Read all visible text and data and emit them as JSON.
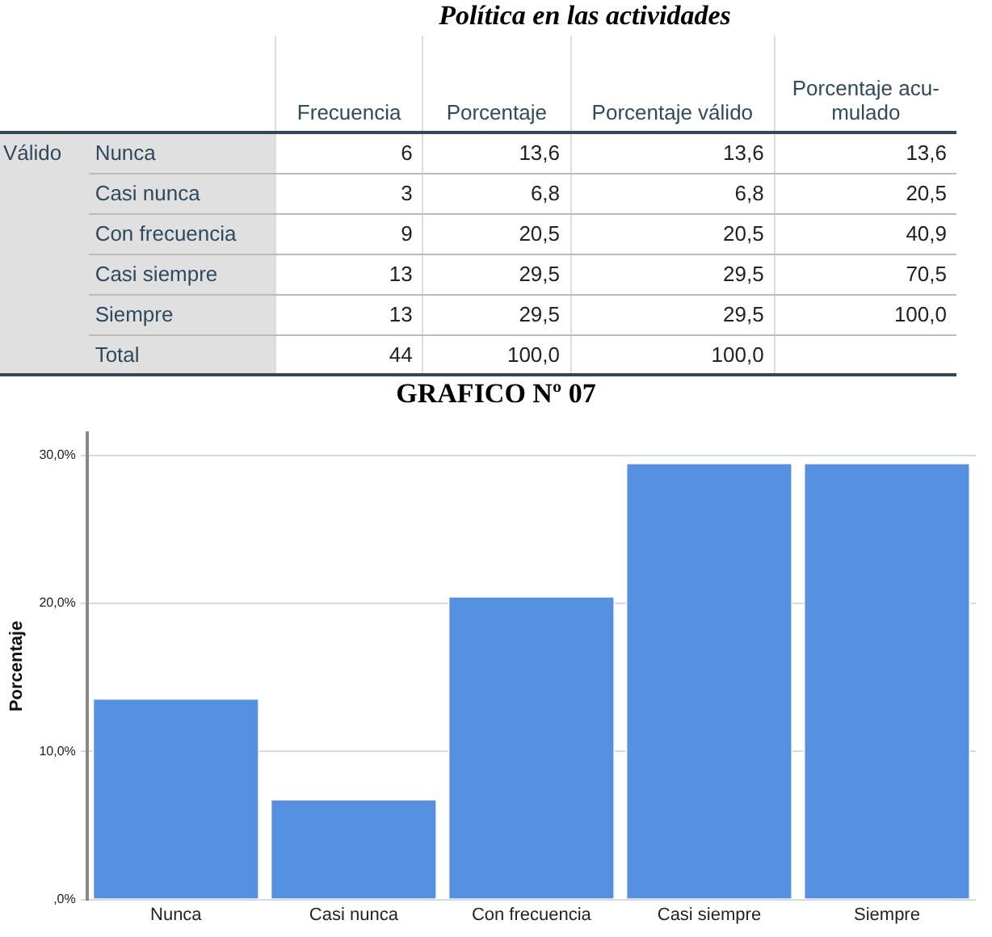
{
  "chart_data": [
    {
      "type": "other",
      "title": "Política en las actividades",
      "annotations": [
        "Válido"
      ],
      "categories": [
        "Nunca",
        "Casi nunca",
        "Con frecuencia",
        "Casi siempre",
        "Siempre",
        "Total"
      ],
      "series": [
        {
          "name": "Frecuencia",
          "values": [
            6,
            3,
            9,
            13,
            13,
            44
          ]
        },
        {
          "name": "Porcentaje",
          "values": [
            13.6,
            6.8,
            20.5,
            29.5,
            29.5,
            100.0
          ],
          "value_labels": [
            "13,6",
            "6,8",
            "20,5",
            "29,5",
            "29,5",
            "100,0"
          ]
        },
        {
          "name": "Porcentaje válido",
          "values": [
            13.6,
            6.8,
            20.5,
            29.5,
            29.5,
            100.0
          ],
          "value_labels": [
            "13,6",
            "6,8",
            "20,5",
            "29,5",
            "29,5",
            "100,0"
          ]
        },
        {
          "name": "Porcentaje acu-mulado",
          "values": [
            13.6,
            20.5,
            40.9,
            70.5,
            100.0,
            null
          ],
          "value_labels": [
            "13,6",
            "20,5",
            "40,9",
            "70,5",
            "100,0",
            null
          ]
        }
      ],
      "data_labels": true
    },
    {
      "type": "bar",
      "title": "GRAFICO Nº 07",
      "ylabel": "Porcentaje",
      "categories": [
        "Nunca",
        "Casi nunca",
        "Con frecuencia",
        "Casi siempre",
        "Siempre"
      ],
      "values": [
        13.6,
        6.8,
        20.5,
        29.5,
        29.5
      ],
      "color": "#5591e0",
      "ylim": [
        0,
        31.5
      ],
      "yticks": [
        {
          "value": 0,
          "label": ",0%"
        },
        {
          "value": 10,
          "label": "10,0%"
        },
        {
          "value": 20,
          "label": "20,0%"
        },
        {
          "value": 30,
          "label": "30,0%"
        }
      ],
      "grid": "y",
      "legend": false
    }
  ]
}
